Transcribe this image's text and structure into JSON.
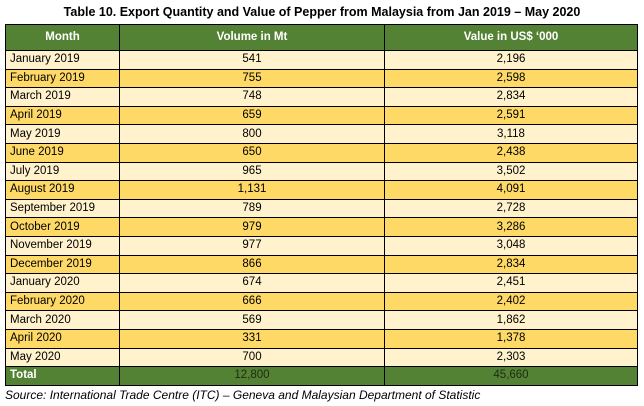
{
  "title": "Table 10. Export Quantity and Value of Pepper from Malaysia from Jan 2019 – May 2020",
  "headers": [
    "Month",
    "Volume in Mt",
    "Value in US$ ‘000"
  ],
  "rows": [
    [
      "January 2019",
      "541",
      "2,196"
    ],
    [
      "February 2019",
      "755",
      "2,598"
    ],
    [
      "March 2019",
      "748",
      "2,834"
    ],
    [
      "April 2019",
      "659",
      "2,591"
    ],
    [
      "May 2019",
      "800",
      "3,118"
    ],
    [
      "June 2019",
      "650",
      "2,438"
    ],
    [
      "July 2019",
      "965",
      "3,502"
    ],
    [
      "August 2019",
      "1,131",
      "4,091"
    ],
    [
      "September 2019",
      "789",
      "2,728"
    ],
    [
      "October 2019",
      "979",
      "3,286"
    ],
    [
      "November 2019",
      "977",
      "3,048"
    ],
    [
      "December 2019",
      "866",
      "2,834"
    ],
    [
      "January 2020",
      "674",
      "2,451"
    ],
    [
      "February 2020",
      "666",
      "2,402"
    ],
    [
      "March 2020",
      "569",
      "1,862"
    ],
    [
      "April 2020",
      "331",
      "1,378"
    ],
    [
      "May 2020",
      "700",
      "2,303"
    ]
  ],
  "total": [
    "Total",
    "12,800",
    "45,660"
  ],
  "source": "Source: International Trade Centre (ITC) – Geneva and Malaysian Department of Statistic",
  "colors": {
    "header": "#548235",
    "row_light": "#FFF2CC",
    "row_dark": "#FFD966"
  }
}
